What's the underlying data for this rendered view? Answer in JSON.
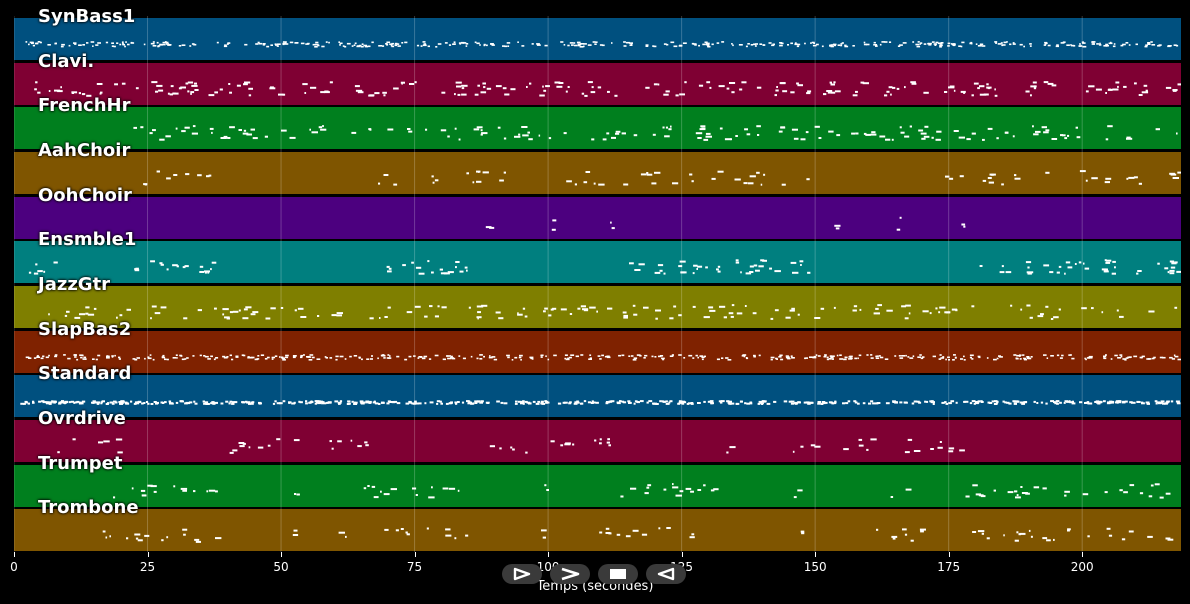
{
  "chart_data": {
    "type": "piano-roll",
    "xlabel": "Temps (secondes)",
    "xlim": [
      0,
      218.5
    ],
    "xticks": [
      0,
      25,
      50,
      75,
      100,
      125,
      150,
      175,
      200
    ],
    "grid": true,
    "tracks": [
      {
        "name": "SynBass1",
        "color": "#00507f",
        "density": 0.95,
        "segments": [
          [
            2,
            218
          ]
        ],
        "style": "line"
      },
      {
        "name": "Clavi.",
        "color": "#7f0033",
        "density": 0.75,
        "segments": [
          [
            3,
            218
          ]
        ],
        "style": "scatter"
      },
      {
        "name": "FrenchHr",
        "color": "#007f1e",
        "density": 0.6,
        "segments": [
          [
            22,
            218
          ]
        ],
        "style": "scatter"
      },
      {
        "name": "AahChoir",
        "color": "#7f5500",
        "density": 0.45,
        "segments": [
          [
            21,
            38
          ],
          [
            67,
            92
          ],
          [
            103,
            150
          ],
          [
            171,
            218
          ]
        ],
        "style": "scatter"
      },
      {
        "name": "OohChoir",
        "color": "#4c007f",
        "density": 0.05,
        "segments": [
          [
            88,
            89
          ],
          [
            100,
            101
          ],
          [
            111,
            112
          ],
          [
            153,
            154
          ],
          [
            165,
            166
          ],
          [
            177,
            178
          ]
        ],
        "style": "scatter"
      },
      {
        "name": "Ensmble1",
        "color": "#007f7f",
        "density": 0.85,
        "segments": [
          [
            2,
            8
          ],
          [
            21,
            38
          ],
          [
            68,
            85
          ],
          [
            115,
            150
          ],
          [
            180,
            218
          ]
        ],
        "style": "scatter"
      },
      {
        "name": "JazzGtr",
        "color": "#7f7f00",
        "density": 0.55,
        "segments": [
          [
            6,
            218
          ]
        ],
        "style": "scatter"
      },
      {
        "name": "SlapBas2",
        "color": "#7f2200",
        "density": 0.95,
        "segments": [
          [
            2,
            218
          ]
        ],
        "style": "line"
      },
      {
        "name": "Standard",
        "color": "#00507f",
        "density": 1.0,
        "segments": [
          [
            1,
            218
          ]
        ],
        "style": "dense"
      },
      {
        "name": "Ovrdrive",
        "color": "#7f0033",
        "density": 0.45,
        "segments": [
          [
            8,
            20
          ],
          [
            36,
            67
          ],
          [
            83,
            113
          ],
          [
            130,
            134
          ],
          [
            145,
            178
          ]
        ],
        "style": "scatter"
      },
      {
        "name": "Trumpet",
        "color": "#007f1e",
        "density": 0.55,
        "segments": [
          [
            16,
            38
          ],
          [
            52,
            54
          ],
          [
            64,
            85
          ],
          [
            99,
            101
          ],
          [
            110,
            133
          ],
          [
            145,
            149
          ],
          [
            164,
            167
          ],
          [
            177,
            218
          ]
        ],
        "style": "scatter"
      },
      {
        "name": "Trombone",
        "color": "#7f5500",
        "density": 0.5,
        "segments": [
          [
            14,
            38
          ],
          [
            50,
            54
          ],
          [
            60,
            62
          ],
          [
            68,
            85
          ],
          [
            97,
            100
          ],
          [
            109,
            128
          ],
          [
            147,
            150
          ],
          [
            161,
            175
          ],
          [
            179,
            218
          ]
        ],
        "style": "scatter"
      }
    ]
  },
  "controls": {
    "icons": [
      "play-triangle",
      "fast-forward",
      "stop-square",
      "rewind-triangle"
    ]
  }
}
